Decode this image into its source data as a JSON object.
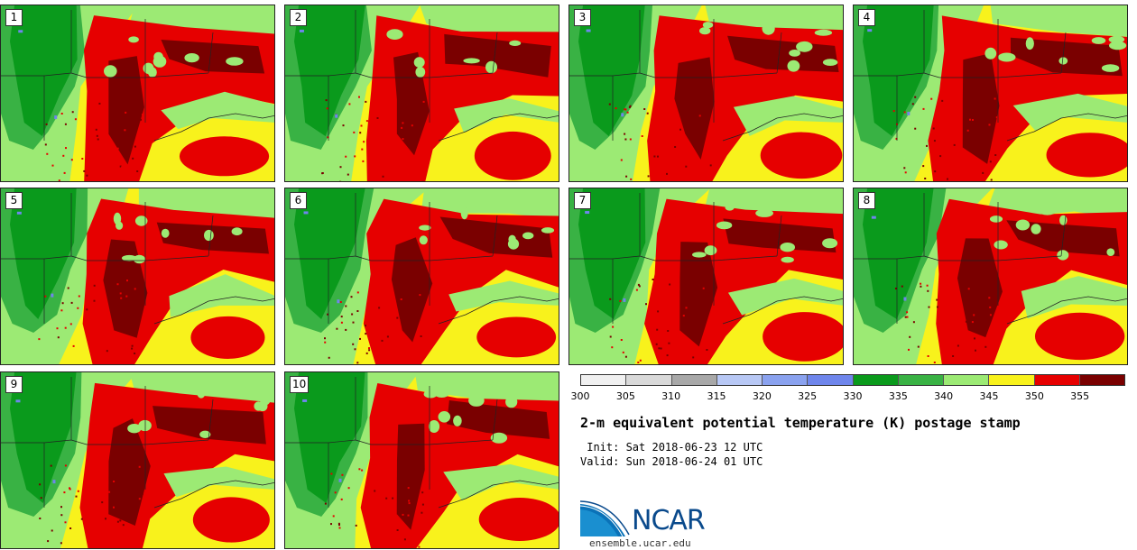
{
  "members": [
    {
      "label": "1"
    },
    {
      "label": "2"
    },
    {
      "label": "3"
    },
    {
      "label": "4"
    },
    {
      "label": "5"
    },
    {
      "label": "6"
    },
    {
      "label": "7"
    },
    {
      "label": "8"
    },
    {
      "label": "9"
    },
    {
      "label": "10"
    }
  ],
  "colorbar": {
    "ticks": [
      "300",
      "305",
      "310",
      "315",
      "320",
      "325",
      "330",
      "335",
      "340",
      "345",
      "350",
      "355"
    ],
    "colors": [
      "#f0f0f0",
      "#d9d9d9",
      "#a8a8a8",
      "#b8c8f5",
      "#8aa2ef",
      "#6f86ec",
      "#0a9a1c",
      "#39b244",
      "#9cea74",
      "#f8f21c",
      "#e60000",
      "#7a0000"
    ]
  },
  "title": "2-m equivalent potential temperature (K) postage stamp",
  "init_text": " Init: Sat 2018-06-23 12 UTC",
  "valid_text": "Valid: Sun 2018-06-24 01 UTC",
  "logo": {
    "text": "NCAR",
    "url": "ensemble.ucar.edu",
    "blue": "#0a4a8c"
  },
  "map_colors": {
    "dark_green": "#0a9a1c",
    "mid_green": "#39b244",
    "light_green": "#9cea74",
    "yellow": "#f8f21c",
    "red": "#e60000",
    "dark_red": "#7a0000",
    "lake_blue": "#6f86ec"
  }
}
